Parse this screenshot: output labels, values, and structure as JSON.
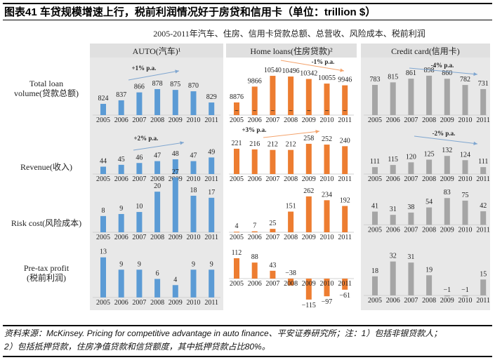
{
  "header": {
    "title": "图表41    车贷规模增速上行，税前利润情况好于房贷和信用卡（单位：trillion $）"
  },
  "footer": {
    "line1": "资料来源：McKinsey. Pricing for competitive advantage in auto finance、平安证券研究所；注：1）包括非银贷款人；",
    "line2": "2）包括抵押贷款，住房净值贷款和信贷额度，其中抵押贷款占比80%。"
  },
  "chart_data": {
    "type": "bar",
    "title": "2005-2011年汽车、住房、信用卡贷款总额、总营收、风险成本、税前利润",
    "categories": [
      "2005",
      "2006",
      "2007",
      "2008",
      "2009",
      "2010",
      "2011"
    ],
    "columns": [
      {
        "label": "AUTO(汽车)¹",
        "color": "#5b9bd5",
        "shaded": true
      },
      {
        "label": "Home loans(住房贷款)²",
        "color": "#ed7d31",
        "shaded": false
      },
      {
        "label": "Credit card(信用卡)",
        "color": "#a5a5a5",
        "shaded": true
      }
    ],
    "rows": [
      {
        "label": [
          "Total loan",
          "volume(贷款总额)"
        ],
        "charts": [
          {
            "values": [
              824,
              837,
              866,
              878,
              875,
              870,
              829
            ],
            "ylim": [
              783,
              960
            ],
            "trend": "+1% p.a."
          },
          {
            "values": [
              8876,
              9866,
              10540,
              10496,
              10342,
              10055,
              9946
            ],
            "ylim": [
              8086,
              11112
            ],
            "trend": "-1% p.a.",
            "axis_break": true
          },
          {
            "values": [
              783,
              815,
              861,
              898,
              860,
              782,
              731
            ],
            "ylim": [
              406,
              1011
            ],
            "trend": "-4% p.a."
          }
        ]
      },
      {
        "label": [
          "Revenue(收入)"
        ],
        "charts": [
          {
            "values": [
              44,
              45,
              46,
              47,
              48,
              47,
              49
            ],
            "ylim": [
              40,
              64
            ],
            "trend": "+2% p.a."
          },
          {
            "values": [
              221,
              216,
              212,
              212,
              258,
              252,
              240
            ],
            "ylim": [
              31,
              363
            ],
            "trend": "+3% p.a."
          },
          {
            "values": [
              111,
              115,
              120,
              125,
              132,
              124,
              111
            ],
            "ylim": [
              98,
              181
            ],
            "trend": "-2% p.a."
          }
        ]
      },
      {
        "label": [
          "Risk cost(风险成本)"
        ],
        "charts": [
          {
            "values": [
              8,
              9,
              10,
              20,
              27,
              18,
              17
            ],
            "ylim": [
              0,
              28
            ]
          },
          {
            "values": [
              4,
              7,
              25,
              151,
              262,
              234,
              192
            ],
            "ylim": [
              0,
              415
            ]
          },
          {
            "values": [
              41,
              31,
              38,
              54,
              83,
              75,
              42
            ],
            "ylim": [
              -23,
              153
            ]
          }
        ]
      },
      {
        "label": [
          "Pre-tax profit",
          "(税前利润)"
        ],
        "charts": [
          {
            "values": [
              13,
              9,
              9,
              6,
              4,
              9,
              9
            ],
            "ylim": [
              -1.4,
              16.8
            ]
          },
          {
            "values": [
              112,
              88,
              43,
              -38,
              -115,
              -97,
              -61
            ],
            "ylim": [
              -127,
              181
            ]
          },
          {
            "values": [
              18,
              32,
              31,
              19,
              -1,
              -1,
              15
            ],
            "ylim": [
              -6,
              47
            ]
          }
        ]
      }
    ]
  }
}
